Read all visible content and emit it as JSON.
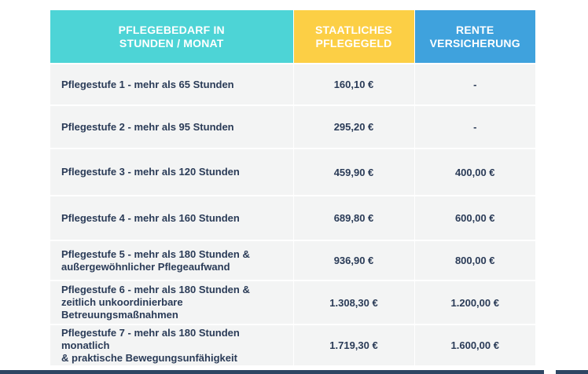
{
  "table": {
    "headers": [
      "PFLEGEBEDARF IN\nSTUNDEN / MONAT",
      "STAATLICHES\nPFLEGEGELD",
      "RENTE\nVERSICHERUNG"
    ],
    "rows": [
      {
        "label": "Pflegestufe 1 - mehr als 65 Stunden",
        "pflegegeld": "160,10 €",
        "rente": "-"
      },
      {
        "label": "Pflegestufe 2 - mehr als 95 Stunden",
        "pflegegeld": "295,20 €",
        "rente": "-"
      },
      {
        "label": "Pflegestufe 3 - mehr als 120 Stunden",
        "pflegegeld": "459,90 €",
        "rente": "400,00 €"
      },
      {
        "label": "Pflegestufe 4 - mehr als 160 Stunden",
        "pflegegeld": "689,80 €",
        "rente": "600,00 €"
      },
      {
        "label": "Pflegestufe 5 - mehr als 180 Stunden &\naußergewöhnlicher Pflegeaufwand",
        "pflegegeld": "936,90 €",
        "rente": "800,00 €"
      },
      {
        "label": "Pflegestufe 6 - mehr als 180 Stunden &\nzeitlich unkoordinierbare Betreuungsmaßnahmen",
        "pflegegeld": "1.308,30 €",
        "rente": "1.200,00 €"
      },
      {
        "label": "Pflegestufe 7 - mehr als 180 Stunden monatlich\n& praktische Bewegungsunfähigkeit",
        "pflegegeld": "1.719,30 €",
        "rente": "1.600,00 €"
      }
    ]
  },
  "colors": {
    "header_col1": "#4dd4d6",
    "header_col2": "#fccf45",
    "header_col3": "#3fa2dd",
    "row_bg": "#f3f4f4",
    "text": "#2a3b57",
    "bottom_bar": "#2e4663"
  }
}
